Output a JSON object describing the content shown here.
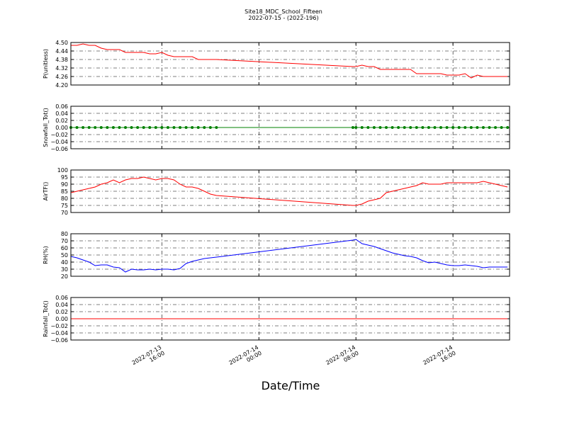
{
  "chart_data": [
    {
      "type": "line",
      "title": "Site18_MDC_School_Fifteen",
      "subtitle": "2022-07-15 - (2022-196)",
      "ylabel": "P(unitless)",
      "color": "#ff0000",
      "marker": null,
      "grid": true,
      "xlim": [
        "2022-07-13 08:30",
        "2022-07-14 20:40"
      ],
      "ylim": [
        4.2,
        4.5
      ],
      "yticks": [
        {
          "value": 4.2,
          "label": "4.20"
        },
        {
          "value": 4.26,
          "label": "4.26"
        },
        {
          "value": 4.32,
          "label": "4.32"
        },
        {
          "value": 4.38,
          "label": "4.38"
        },
        {
          "value": 4.44,
          "label": "4.44"
        },
        {
          "value": 4.5,
          "label": "4.50"
        }
      ],
      "x": [
        "2022-07-13 08:30",
        "2022-07-13 09:00",
        "2022-07-13 09:30",
        "2022-07-13 10:00",
        "2022-07-13 10:30",
        "2022-07-13 11:00",
        "2022-07-13 11:30",
        "2022-07-13 12:00",
        "2022-07-13 12:30",
        "2022-07-13 13:00",
        "2022-07-13 13:30",
        "2022-07-13 14:00",
        "2022-07-13 14:30",
        "2022-07-13 15:00",
        "2022-07-13 15:30",
        "2022-07-13 16:00",
        "2022-07-13 16:30",
        "2022-07-13 17:00",
        "2022-07-13 17:30",
        "2022-07-13 18:00",
        "2022-07-13 18:30",
        "2022-07-13 19:00",
        "2022-07-13 19:30",
        "2022-07-13 20:00",
        "2022-07-13 20:30",
        "2022-07-14 07:45",
        "2022-07-14 08:00",
        "2022-07-14 08:30",
        "2022-07-14 09:00",
        "2022-07-14 09:30",
        "2022-07-14 10:00",
        "2022-07-14 10:30",
        "2022-07-14 11:00",
        "2022-07-14 11:30",
        "2022-07-14 12:00",
        "2022-07-14 12:30",
        "2022-07-14 13:00",
        "2022-07-14 13:30",
        "2022-07-14 14:00",
        "2022-07-14 14:30",
        "2022-07-14 15:00",
        "2022-07-14 15:30",
        "2022-07-14 16:00",
        "2022-07-14 16:30",
        "2022-07-14 17:00",
        "2022-07-14 17:30",
        "2022-07-14 18:00",
        "2022-07-14 18:30",
        "2022-07-14 19:00",
        "2022-07-14 19:30",
        "2022-07-14 20:00",
        "2022-07-14 20:30"
      ],
      "values": [
        4.48,
        4.48,
        4.49,
        4.48,
        4.48,
        4.46,
        4.45,
        4.45,
        4.45,
        4.43,
        4.43,
        4.43,
        4.43,
        4.42,
        4.42,
        4.43,
        4.41,
        4.4,
        4.4,
        4.4,
        4.4,
        4.38,
        4.38,
        4.38,
        4.38,
        4.33,
        4.33,
        4.34,
        4.33,
        4.33,
        4.31,
        4.31,
        4.31,
        4.31,
        4.31,
        4.31,
        4.28,
        4.28,
        4.28,
        4.28,
        4.28,
        4.27,
        4.27,
        4.27,
        4.28,
        4.25,
        4.27,
        4.26,
        4.26,
        4.26,
        4.26,
        4.26
      ]
    },
    {
      "type": "line",
      "ylabel": "Snowfall_Tot()",
      "color": "#008000",
      "marker": "o",
      "grid": true,
      "xlim": [
        "2022-07-13 08:30",
        "2022-07-14 20:40"
      ],
      "ylim": [
        -0.06,
        0.06
      ],
      "yticks": [
        {
          "value": -0.06,
          "label": "−0.06"
        },
        {
          "value": -0.04,
          "label": "−0.04"
        },
        {
          "value": -0.02,
          "label": "−0.02"
        },
        {
          "value": 0,
          "label": "0.00"
        },
        {
          "value": 0.02,
          "label": "0.02"
        },
        {
          "value": 0.04,
          "label": "0.04"
        },
        {
          "value": 0.06,
          "label": "0.06"
        }
      ],
      "x": [
        "2022-07-13 08:30",
        "2022-07-13 09:00",
        "2022-07-13 09:30",
        "2022-07-13 10:00",
        "2022-07-13 10:30",
        "2022-07-13 11:00",
        "2022-07-13 11:30",
        "2022-07-13 12:00",
        "2022-07-13 12:30",
        "2022-07-13 13:00",
        "2022-07-13 13:30",
        "2022-07-13 14:00",
        "2022-07-13 14:30",
        "2022-07-13 15:00",
        "2022-07-13 15:30",
        "2022-07-13 16:00",
        "2022-07-13 16:30",
        "2022-07-13 17:00",
        "2022-07-13 17:30",
        "2022-07-13 18:00",
        "2022-07-13 18:30",
        "2022-07-13 19:00",
        "2022-07-13 19:30",
        "2022-07-13 20:00",
        "2022-07-13 20:30",
        "2022-07-14 07:45",
        "2022-07-14 08:00",
        "2022-07-14 08:30",
        "2022-07-14 09:00",
        "2022-07-14 09:30",
        "2022-07-14 10:00",
        "2022-07-14 10:30",
        "2022-07-14 11:00",
        "2022-07-14 11:30",
        "2022-07-14 12:00",
        "2022-07-14 12:30",
        "2022-07-14 13:00",
        "2022-07-14 13:30",
        "2022-07-14 14:00",
        "2022-07-14 14:30",
        "2022-07-14 15:00",
        "2022-07-14 15:30",
        "2022-07-14 16:00",
        "2022-07-14 16:30",
        "2022-07-14 17:00",
        "2022-07-14 17:30",
        "2022-07-14 18:00",
        "2022-07-14 18:30",
        "2022-07-14 19:00",
        "2022-07-14 19:30",
        "2022-07-14 20:00",
        "2022-07-14 20:30"
      ],
      "values": [
        0,
        0,
        0,
        0,
        0,
        0,
        0,
        0,
        0,
        0,
        0,
        0,
        0,
        0,
        0,
        0,
        0,
        0,
        0,
        0,
        0,
        0,
        0,
        0,
        0,
        0,
        0,
        0,
        0,
        0,
        0,
        0,
        0,
        0,
        0,
        0,
        0,
        0,
        0,
        0,
        0,
        0,
        0,
        0,
        0,
        0,
        0,
        0,
        0,
        0,
        0,
        0
      ]
    },
    {
      "type": "line",
      "ylabel": "AirTF()",
      "color": "#ff0000",
      "marker": null,
      "grid": true,
      "xlim": [
        "2022-07-13 08:30",
        "2022-07-14 20:40"
      ],
      "ylim": [
        70,
        100
      ],
      "yticks": [
        70,
        75,
        80,
        85,
        90,
        95,
        100
      ],
      "x": [
        "2022-07-13 08:30",
        "2022-07-13 09:00",
        "2022-07-13 09:30",
        "2022-07-13 10:00",
        "2022-07-13 10:30",
        "2022-07-13 11:00",
        "2022-07-13 11:30",
        "2022-07-13 12:00",
        "2022-07-13 12:30",
        "2022-07-13 13:00",
        "2022-07-13 13:30",
        "2022-07-13 14:00",
        "2022-07-13 14:30",
        "2022-07-13 15:00",
        "2022-07-13 15:30",
        "2022-07-13 16:00",
        "2022-07-13 16:30",
        "2022-07-13 17:00",
        "2022-07-13 17:30",
        "2022-07-13 18:00",
        "2022-07-13 18:30",
        "2022-07-13 19:00",
        "2022-07-13 19:30",
        "2022-07-13 20:00",
        "2022-07-13 20:30",
        "2022-07-14 07:45",
        "2022-07-14 08:00",
        "2022-07-14 08:30",
        "2022-07-14 09:00",
        "2022-07-14 09:30",
        "2022-07-14 10:00",
        "2022-07-14 10:30",
        "2022-07-14 11:00",
        "2022-07-14 11:30",
        "2022-07-14 12:00",
        "2022-07-14 12:30",
        "2022-07-14 13:00",
        "2022-07-14 13:30",
        "2022-07-14 14:00",
        "2022-07-14 14:30",
        "2022-07-14 15:00",
        "2022-07-14 15:30",
        "2022-07-14 16:00",
        "2022-07-14 16:30",
        "2022-07-14 17:00",
        "2022-07-14 17:30",
        "2022-07-14 18:00",
        "2022-07-14 18:30",
        "2022-07-14 19:00",
        "2022-07-14 19:30",
        "2022-07-14 20:00",
        "2022-07-14 20:30"
      ],
      "values": [
        84,
        85,
        86,
        87,
        88,
        90,
        91,
        93,
        91,
        93,
        94,
        94,
        95,
        94,
        93,
        94,
        94,
        93,
        90,
        88,
        88,
        87,
        85,
        83,
        82,
        75,
        75,
        76,
        78,
        79,
        80,
        84,
        85,
        86,
        87,
        88,
        89,
        91,
        90,
        90,
        90,
        91,
        91,
        91,
        91,
        91,
        91,
        92,
        91,
        90,
        89,
        88
      ]
    },
    {
      "type": "line",
      "ylabel": "RH(%)",
      "color": "#0000ff",
      "marker": null,
      "grid": true,
      "xlim": [
        "2022-07-13 08:30",
        "2022-07-14 20:40"
      ],
      "ylim": [
        20,
        80
      ],
      "yticks": [
        20,
        30,
        40,
        50,
        60,
        70,
        80
      ],
      "x": [
        "2022-07-13 08:30",
        "2022-07-13 09:00",
        "2022-07-13 09:30",
        "2022-07-13 10:00",
        "2022-07-13 10:30",
        "2022-07-13 11:00",
        "2022-07-13 11:30",
        "2022-07-13 12:00",
        "2022-07-13 12:30",
        "2022-07-13 13:00",
        "2022-07-13 13:30",
        "2022-07-13 14:00",
        "2022-07-13 14:30",
        "2022-07-13 15:00",
        "2022-07-13 15:30",
        "2022-07-13 16:00",
        "2022-07-13 16:30",
        "2022-07-13 17:00",
        "2022-07-13 17:30",
        "2022-07-13 18:00",
        "2022-07-13 18:30",
        "2022-07-13 19:00",
        "2022-07-13 19:30",
        "2022-07-13 20:00",
        "2022-07-13 20:30",
        "2022-07-14 07:45",
        "2022-07-14 08:00",
        "2022-07-14 08:30",
        "2022-07-14 09:00",
        "2022-07-14 09:30",
        "2022-07-14 10:00",
        "2022-07-14 10:30",
        "2022-07-14 11:00",
        "2022-07-14 11:30",
        "2022-07-14 12:00",
        "2022-07-14 12:30",
        "2022-07-14 13:00",
        "2022-07-14 13:30",
        "2022-07-14 14:00",
        "2022-07-14 14:30",
        "2022-07-14 15:00",
        "2022-07-14 15:30",
        "2022-07-14 16:00",
        "2022-07-14 16:30",
        "2022-07-14 17:00",
        "2022-07-14 17:30",
        "2022-07-14 18:00",
        "2022-07-14 18:30",
        "2022-07-14 19:00",
        "2022-07-14 19:30",
        "2022-07-14 20:00",
        "2022-07-14 20:30"
      ],
      "values": [
        48,
        46,
        43,
        40,
        35,
        36,
        36,
        33,
        32,
        26,
        30,
        29,
        29,
        30,
        29,
        30,
        30,
        29,
        31,
        38,
        41,
        43,
        45,
        46,
        47,
        71,
        72,
        66,
        64,
        62,
        59,
        56,
        53,
        51,
        49,
        48,
        46,
        42,
        39,
        40,
        38,
        36,
        35,
        35,
        36,
        35,
        34,
        32,
        33,
        33,
        33,
        33
      ]
    },
    {
      "type": "line",
      "ylabel": "Rainfall_Tot()",
      "xlabel": "Date/Time",
      "color": "#ff0000",
      "marker": null,
      "grid": true,
      "xlim": [
        "2022-07-13 08:30",
        "2022-07-14 20:40"
      ],
      "xticks": [
        {
          "value": "2022-07-13 16:00",
          "label": "2022-07-13\n16:00"
        },
        {
          "value": "2022-07-14 00:00",
          "label": "2022-07-14\n00:00"
        },
        {
          "value": "2022-07-14 08:00",
          "label": "2022-07-14\n08:00"
        },
        {
          "value": "2022-07-14 16:00",
          "label": "2022-07-14\n16:00"
        }
      ],
      "ylim": [
        -0.06,
        0.06
      ],
      "yticks": [
        {
          "value": -0.06,
          "label": "−0.06"
        },
        {
          "value": -0.04,
          "label": "−0.04"
        },
        {
          "value": -0.02,
          "label": "−0.02"
        },
        {
          "value": 0,
          "label": "0.00"
        },
        {
          "value": 0.02,
          "label": "0.02"
        },
        {
          "value": 0.04,
          "label": "0.04"
        },
        {
          "value": 0.06,
          "label": "0.06"
        }
      ],
      "x": [
        "2022-07-13 08:30",
        "2022-07-13 09:00",
        "2022-07-13 09:30",
        "2022-07-13 10:00",
        "2022-07-13 10:30",
        "2022-07-13 11:00",
        "2022-07-13 11:30",
        "2022-07-13 12:00",
        "2022-07-13 12:30",
        "2022-07-13 13:00",
        "2022-07-13 13:30",
        "2022-07-13 14:00",
        "2022-07-13 14:30",
        "2022-07-13 15:00",
        "2022-07-13 15:30",
        "2022-07-13 16:00",
        "2022-07-13 16:30",
        "2022-07-13 17:00",
        "2022-07-13 17:30",
        "2022-07-13 18:00",
        "2022-07-13 18:30",
        "2022-07-13 19:00",
        "2022-07-13 19:30",
        "2022-07-13 20:00",
        "2022-07-13 20:30",
        "2022-07-14 07:45",
        "2022-07-14 08:00",
        "2022-07-14 08:30",
        "2022-07-14 09:00",
        "2022-07-14 09:30",
        "2022-07-14 10:00",
        "2022-07-14 10:30",
        "2022-07-14 11:00",
        "2022-07-14 11:30",
        "2022-07-14 12:00",
        "2022-07-14 12:30",
        "2022-07-14 13:00",
        "2022-07-14 13:30",
        "2022-07-14 14:00",
        "2022-07-14 14:30",
        "2022-07-14 15:00",
        "2022-07-14 15:30",
        "2022-07-14 16:00",
        "2022-07-14 16:30",
        "2022-07-14 17:00",
        "2022-07-14 17:30",
        "2022-07-14 18:00",
        "2022-07-14 18:30",
        "2022-07-14 19:00",
        "2022-07-14 19:30",
        "2022-07-14 20:00",
        "2022-07-14 20:30"
      ],
      "values": [
        0,
        0,
        0,
        0,
        0,
        0,
        0,
        0,
        0,
        0,
        0,
        0,
        0,
        0,
        0,
        0,
        0,
        0,
        0,
        0,
        0,
        0,
        0,
        0,
        0,
        0,
        0,
        0,
        0,
        0,
        0,
        0,
        0,
        0,
        0,
        0,
        0,
        0,
        0,
        0,
        0,
        0,
        0,
        0,
        0,
        0,
        0,
        0,
        0,
        0,
        0,
        0
      ]
    }
  ]
}
